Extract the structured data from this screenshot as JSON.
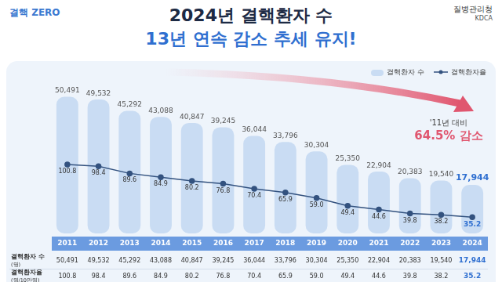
{
  "chart_data": {
    "type": "bar",
    "title": "2024년 결핵환자 수",
    "subtitle": "13년 연속 감소 추세 유지!",
    "logo": "결핵 ZERO",
    "agency": "질병관리청",
    "agency_en": "KDCA",
    "annotations": [
      "'11년 대비",
      "64.5% 감소"
    ],
    "categories": [
      "2011",
      "2012",
      "2013",
      "2014",
      "2015",
      "2016",
      "2017",
      "2018",
      "2019",
      "2020",
      "2021",
      "2022",
      "2023",
      "2024"
    ],
    "series": [
      {
        "name": "결핵환자 수",
        "type": "bar",
        "color": "#c9dcf3",
        "values": [
          50491,
          49532,
          45292,
          43088,
          40847,
          39245,
          36044,
          33796,
          30304,
          25350,
          22904,
          20383,
          19540,
          17944
        ],
        "value_labels": [
          "50,491",
          "49,532",
          "45,292",
          "43,088",
          "40,847",
          "39,245",
          "36,044",
          "33,796",
          "30,304",
          "25,350",
          "22,904",
          "20,383",
          "19,540",
          "17,944"
        ]
      },
      {
        "name": "결핵환자율",
        "type": "line",
        "color": "#33527f",
        "axis": "y2",
        "marker": "circle",
        "values": [
          100.8,
          98.4,
          89.6,
          84.9,
          80.2,
          76.8,
          70.4,
          65.9,
          59.0,
          49.4,
          44.6,
          39.8,
          38.2,
          35.2
        ],
        "value_labels": [
          "100.8",
          "98.4",
          "89.6",
          "84.9",
          "80.2",
          "76.8",
          "70.4",
          "65.9",
          "59.0",
          "49.4",
          "44.6",
          "39.8",
          "38.2",
          "35.2"
        ]
      }
    ],
    "ylim": [
      0,
      55000
    ],
    "y2lim": [
      15,
      200
    ],
    "data_labels": true,
    "tick_labels": "x",
    "grid": false,
    "legend": "top-right",
    "table_row_labels": [
      "결핵환자 수(명)",
      "결핵환자율(명/10만명)"
    ]
  }
}
